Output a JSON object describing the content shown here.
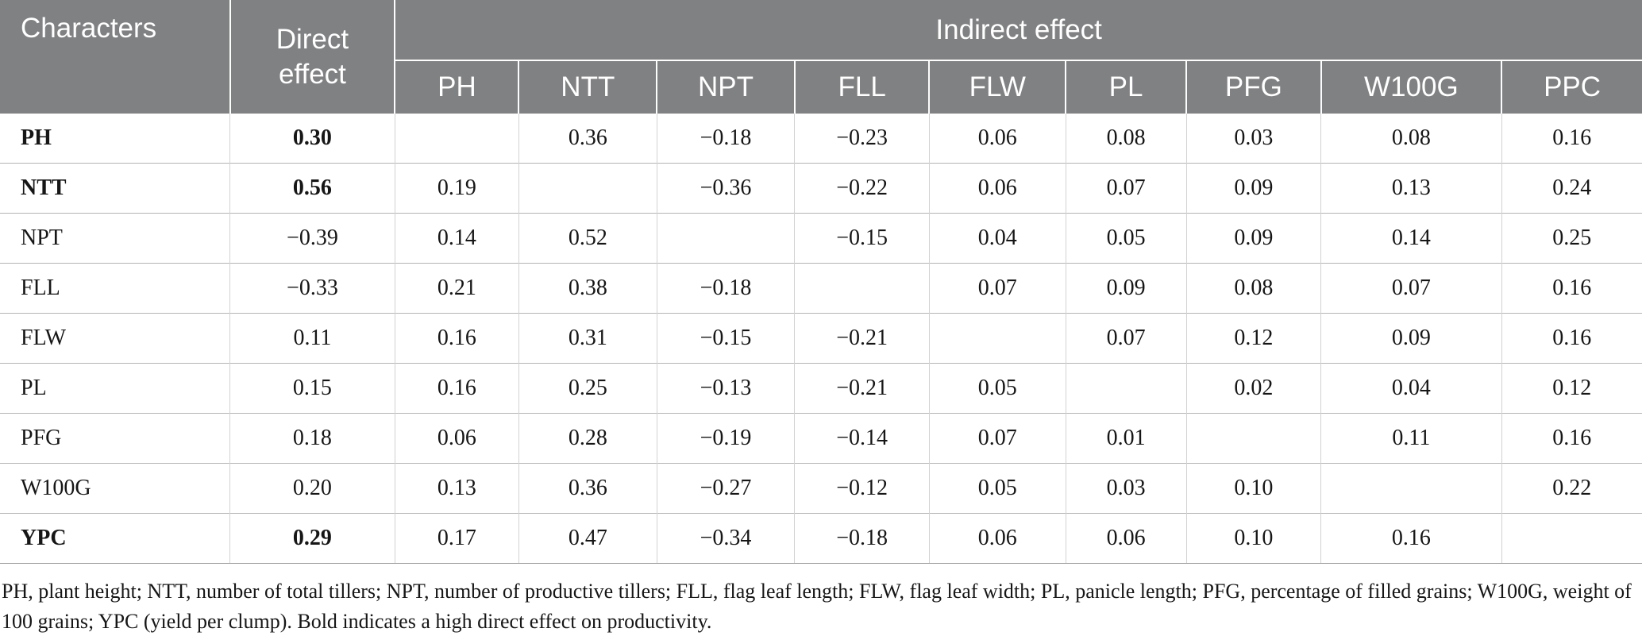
{
  "table": {
    "header": {
      "characters": "Characters",
      "direct_effect": "Direct effect",
      "indirect_effect": "Indirect effect"
    },
    "indirect_columns": [
      "PH",
      "NTT",
      "NPT",
      "FLL",
      "FLW",
      "PL",
      "PFG",
      "W100G",
      "PPC"
    ],
    "rows": [
      {
        "label": "PH",
        "bold": true,
        "direct": "0.30",
        "indirect": [
          "",
          "0.36",
          "−0.18",
          "−0.23",
          "0.06",
          "0.08",
          "0.03",
          "0.08",
          "0.16"
        ]
      },
      {
        "label": "NTT",
        "bold": true,
        "direct": "0.56",
        "indirect": [
          "0.19",
          "",
          "−0.36",
          "−0.22",
          "0.06",
          "0.07",
          "0.09",
          "0.13",
          "0.24"
        ]
      },
      {
        "label": "NPT",
        "bold": false,
        "direct": "−0.39",
        "indirect": [
          "0.14",
          "0.52",
          "",
          "−0.15",
          "0.04",
          "0.05",
          "0.09",
          "0.14",
          "0.25"
        ]
      },
      {
        "label": "FLL",
        "bold": false,
        "direct": "−0.33",
        "indirect": [
          "0.21",
          "0.38",
          "−0.18",
          "",
          "0.07",
          "0.09",
          "0.08",
          "0.07",
          "0.16"
        ]
      },
      {
        "label": "FLW",
        "bold": false,
        "direct": "0.11",
        "indirect": [
          "0.16",
          "0.31",
          "−0.15",
          "−0.21",
          "",
          "0.07",
          "0.12",
          "0.09",
          "0.16"
        ]
      },
      {
        "label": "PL",
        "bold": false,
        "direct": "0.15",
        "indirect": [
          "0.16",
          "0.25",
          "−0.13",
          "−0.21",
          "0.05",
          "",
          "0.02",
          "0.04",
          "0.12"
        ]
      },
      {
        "label": "PFG",
        "bold": false,
        "direct": "0.18",
        "indirect": [
          "0.06",
          "0.28",
          "−0.19",
          "−0.14",
          "0.07",
          "0.01",
          "",
          "0.11",
          "0.16"
        ]
      },
      {
        "label": "W100G",
        "bold": false,
        "direct": "0.20",
        "indirect": [
          "0.13",
          "0.36",
          "−0.27",
          "−0.12",
          "0.05",
          "0.03",
          "0.10",
          "",
          "0.22"
        ]
      },
      {
        "label": "YPC",
        "bold": true,
        "direct": "0.29",
        "indirect": [
          "0.17",
          "0.47",
          "−0.34",
          "−0.18",
          "0.06",
          "0.06",
          "0.10",
          "0.16",
          ""
        ]
      }
    ],
    "footnote": "PH, plant height; NTT, number of total tillers; NPT, number of productive tillers; FLL, flag leaf length; FLW, flag leaf width; PL, panicle length; PFG, percentage of filled grains; W100G, weight of 100 grains; YPC (yield per clump). Bold indicates a high direct effect on productivity."
  },
  "colors": {
    "header_bg": "#808183",
    "header_text": "#ffffff",
    "header_divider": "#fdfdfd",
    "body_text": "#161616",
    "grid_horizontal": "#b4b4b4",
    "grid_vertical": "#d2d2d2",
    "table_bottom_border": "#9c9c9c"
  }
}
